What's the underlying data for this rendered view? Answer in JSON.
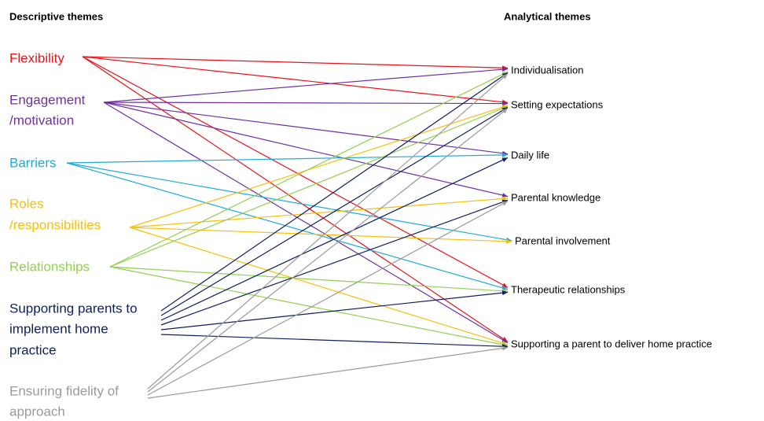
{
  "headers": {
    "left": "Descriptive themes",
    "right": "Analytical themes"
  },
  "descriptive_themes": [
    {
      "lines": [
        "Flexibility"
      ]
    },
    {
      "lines": [
        "Engagement",
        "/motivation"
      ]
    },
    {
      "lines": [
        "Barriers"
      ]
    },
    {
      "lines": [
        "Roles",
        "/responsibilities"
      ]
    },
    {
      "lines": [
        "Relationships"
      ]
    },
    {
      "lines": [
        "Supporting parents to",
        "implement home",
        "practice"
      ]
    },
    {
      "lines": [
        "Ensuring fidelity of",
        "approach"
      ]
    }
  ],
  "analytical_themes": [
    "Individualisation",
    "Setting expectations",
    "Daily life",
    "Parental knowledge",
    "Parental involvement",
    "Therapeutic relationships",
    "Supporting a parent to deliver home practice"
  ]
}
